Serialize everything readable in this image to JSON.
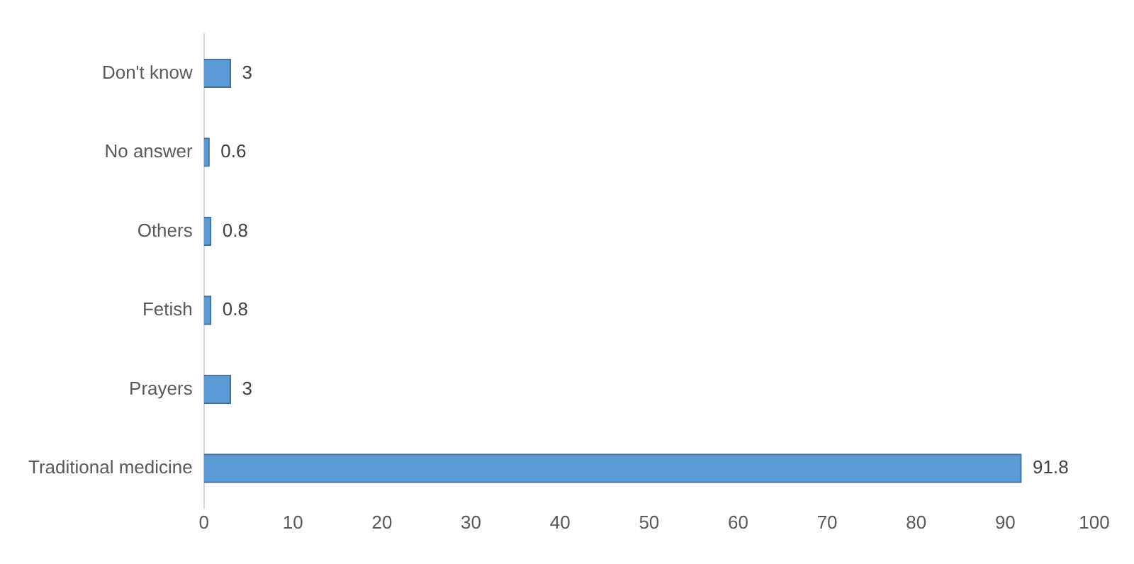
{
  "chart_data": {
    "type": "bar",
    "orientation": "horizontal",
    "categories": [
      "Don't know",
      "No answer",
      "Others",
      "Fetish",
      "Prayers",
      "Traditional medicine"
    ],
    "values": [
      3,
      0.6,
      0.8,
      0.8,
      3,
      91.8
    ],
    "color": "#5b9bd5",
    "xlim": [
      0,
      100
    ],
    "xticks": [
      0,
      10,
      20,
      30,
      40,
      50,
      60,
      70,
      80,
      90,
      100
    ],
    "grid": false,
    "legend": false,
    "data_labels": true
  }
}
